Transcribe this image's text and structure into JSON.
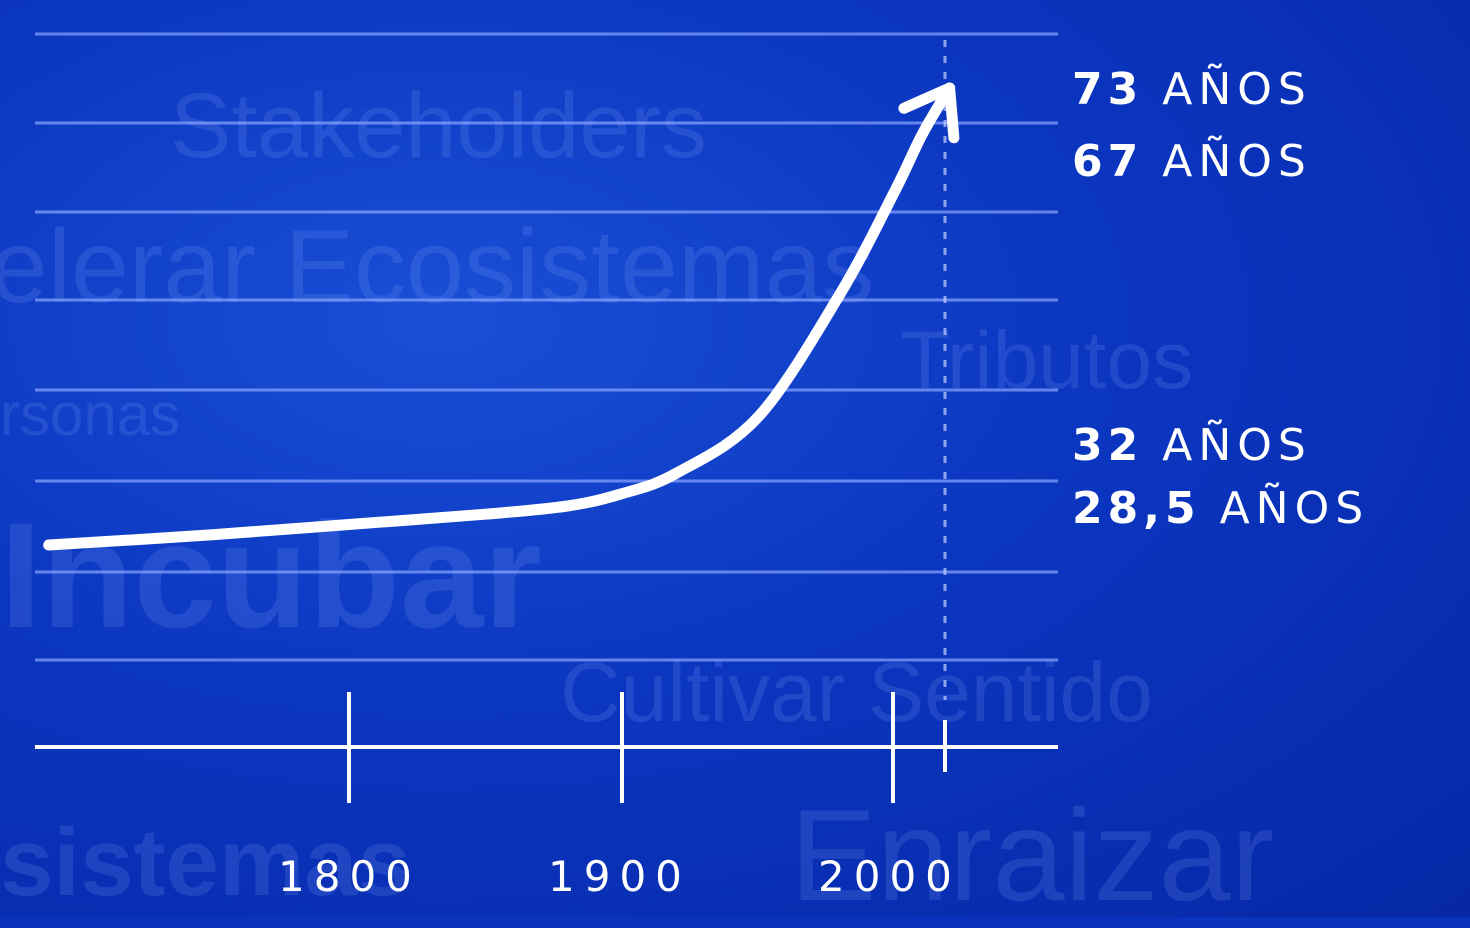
{
  "background_words": [
    "elerar Ecosistemas",
    "Stakeholders",
    "Tributos",
    "rsonas",
    "Incubar",
    "Cultivar Sentido",
    "sistemas",
    "Enraizar"
  ],
  "chart_data": {
    "type": "line",
    "x_ticks": [
      "1800",
      "1900",
      "2000"
    ],
    "title": "",
    "xlabel": "",
    "ylabel": "",
    "grid": true,
    "series": [
      {
        "x": [
          1690,
          1750,
          1800,
          1850,
          1880,
          1900,
          1920,
          1950,
          1980,
          2000,
          2010,
          2020
        ],
        "values": [
          28.5,
          29.5,
          30.5,
          31.5,
          32.3,
          33.5,
          35.5,
          41,
          53,
          63,
          68.5,
          73
        ]
      }
    ],
    "annotations_top": [
      {
        "value": "73",
        "unit": "AÑOS"
      },
      {
        "value": "67",
        "unit": "AÑOS"
      }
    ],
    "annotations_bottom": [
      {
        "value": "32",
        "unit": "AÑOS"
      },
      {
        "value": "28,5",
        "unit": "AÑOS"
      }
    ],
    "marker_year": 2020,
    "colors": {
      "line": "#ffffff",
      "grid": "#8aa6ff",
      "background": "#0a33bb"
    }
  }
}
